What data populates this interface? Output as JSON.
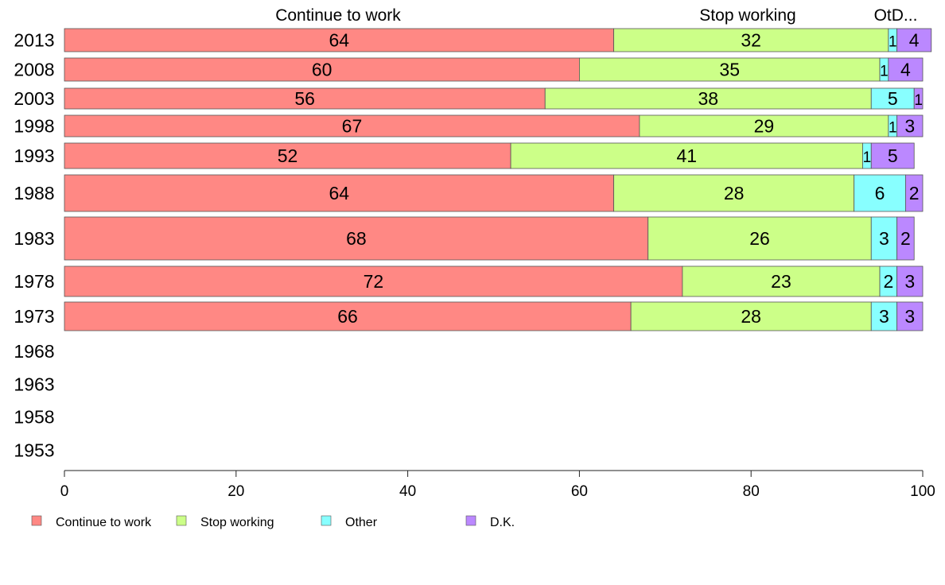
{
  "chart_data": {
    "type": "bar",
    "orientation": "horizontal",
    "stacked": true,
    "categories": [
      "2013",
      "2008",
      "2003",
      "1998",
      "1993",
      "1988",
      "1983",
      "1978",
      "1973",
      "1968",
      "1963",
      "1958",
      "1953"
    ],
    "series": [
      {
        "name": "Continue to work",
        "color": "#ff8884",
        "values": [
          64,
          60,
          56,
          67,
          52,
          64,
          68,
          72,
          66,
          null,
          null,
          null,
          null
        ]
      },
      {
        "name": "Stop working",
        "color": "#ccff88",
        "values": [
          32,
          35,
          38,
          29,
          41,
          28,
          26,
          23,
          28,
          null,
          null,
          null,
          null
        ]
      },
      {
        "name": "Other",
        "color": "#88ffff",
        "values": [
          1,
          1,
          5,
          1,
          1,
          6,
          3,
          2,
          3,
          null,
          null,
          null,
          null
        ]
      },
      {
        "name": "D.K.",
        "color": "#bb88ff",
        "values": [
          4,
          4,
          1,
          3,
          5,
          2,
          2,
          3,
          3,
          null,
          null,
          null,
          null
        ]
      }
    ],
    "column_headers": [
      "Continue to work",
      "Stop working",
      "OtD..."
    ],
    "xlim": [
      0,
      100
    ],
    "xticks": [
      "0",
      "20",
      "40",
      "60",
      "80",
      "100"
    ],
    "xlabel": "",
    "ylabel": "",
    "grid": false,
    "legend_position": "bottom-left"
  }
}
